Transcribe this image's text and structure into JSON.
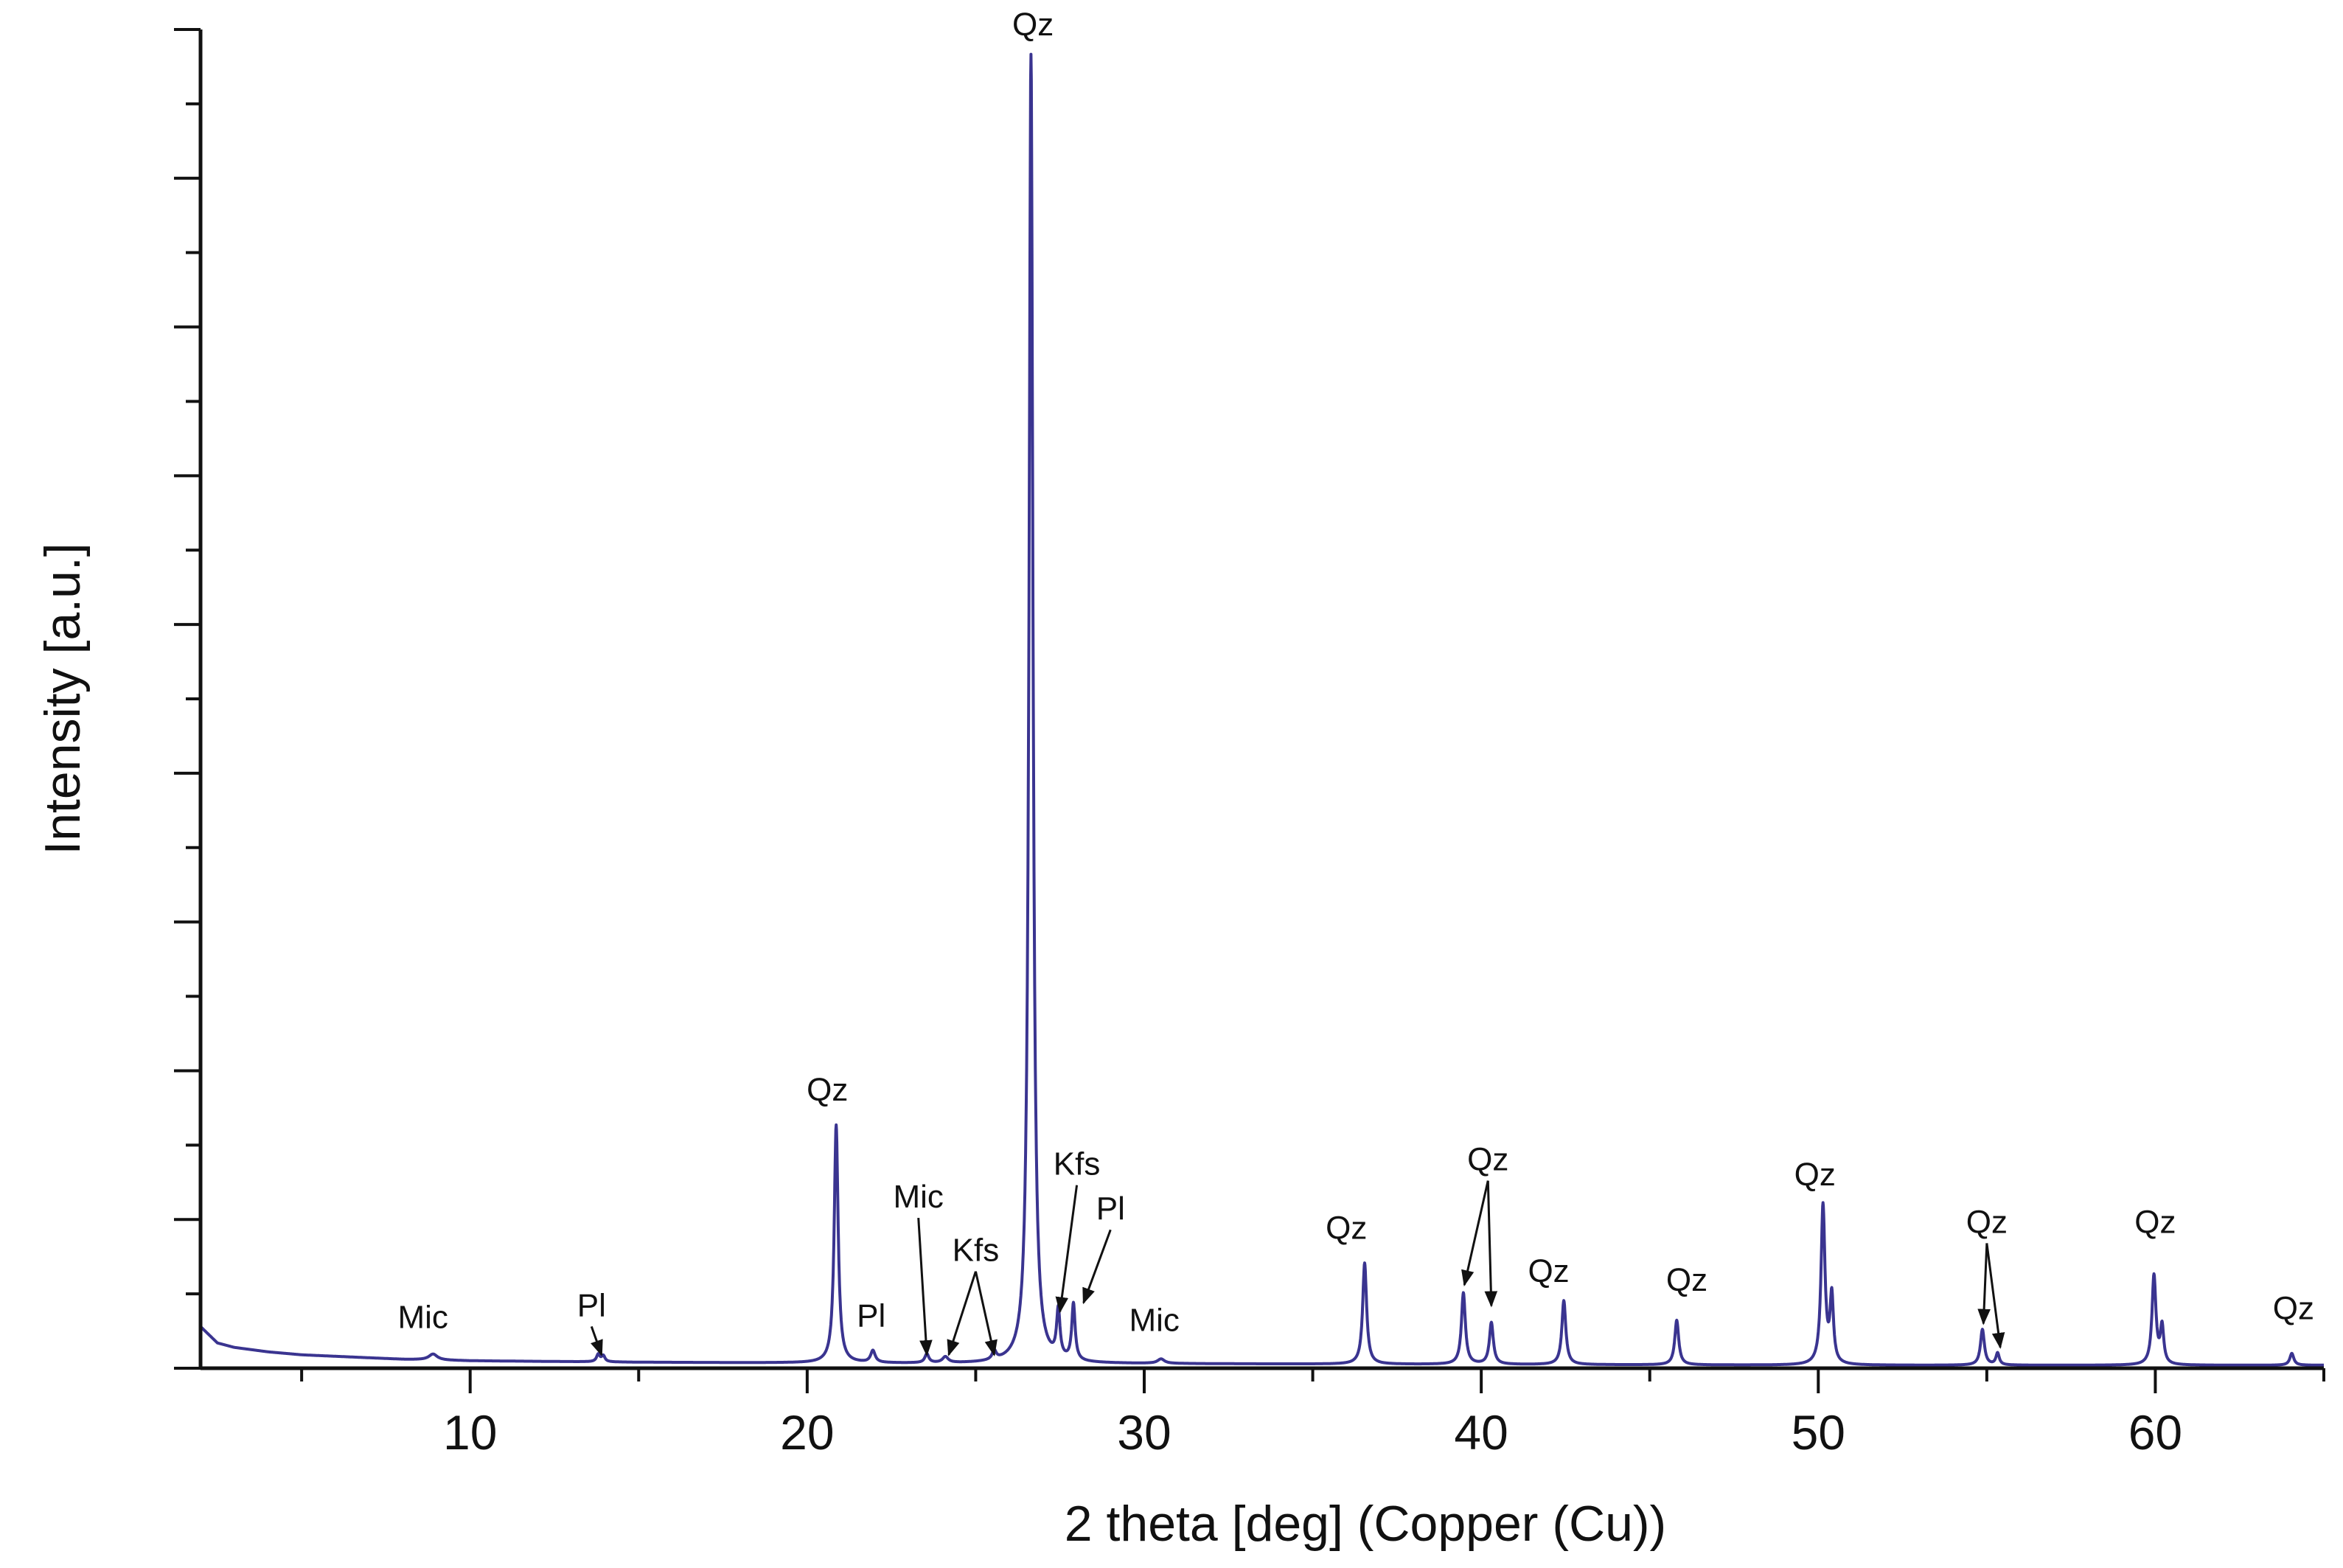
{
  "chart_data": {
    "type": "line",
    "title": "",
    "xlabel": "2 theta [deg] (Copper (Cu))",
    "ylabel": "Intensity [a.u.]",
    "xlim": [
      2,
      65
    ],
    "ylim": [
      0,
      9
    ],
    "x_ticks": [
      10,
      20,
      30,
      40,
      50,
      60
    ],
    "x_tick_labels": [
      "10",
      "20",
      "30",
      "40",
      "50",
      "60"
    ],
    "y_tick_labels_shown": false,
    "grid": false,
    "legend": "none",
    "line_color": "#3a3490",
    "background": {
      "points": [
        [
          2,
          0.28
        ],
        [
          2.5,
          0.17
        ],
        [
          3,
          0.14
        ],
        [
          4,
          0.11
        ],
        [
          5,
          0.09
        ],
        [
          6,
          0.08
        ],
        [
          8,
          0.06
        ],
        [
          10,
          0.05
        ],
        [
          15,
          0.04
        ],
        [
          20,
          0.035
        ],
        [
          25,
          0.03
        ],
        [
          30,
          0.03
        ],
        [
          40,
          0.025
        ],
        [
          50,
          0.02
        ],
        [
          60,
          0.02
        ],
        [
          65,
          0.02
        ]
      ]
    },
    "peaks": [
      {
        "x": 8.9,
        "height": 0.04,
        "width": 0.15
      },
      {
        "x": 13.8,
        "height": 0.05,
        "width": 0.06
      },
      {
        "x": 13.95,
        "height": 0.04,
        "width": 0.06
      },
      {
        "x": 20.86,
        "height": 1.6,
        "width": 0.07
      },
      {
        "x": 21.95,
        "height": 0.08,
        "width": 0.08
      },
      {
        "x": 23.55,
        "height": 0.06,
        "width": 0.07
      },
      {
        "x": 24.1,
        "height": 0.04,
        "width": 0.1
      },
      {
        "x": 25.55,
        "height": 0.06,
        "width": 0.07
      },
      {
        "x": 26.64,
        "height": 8.8,
        "width": 0.07
      },
      {
        "x": 27.45,
        "height": 0.32,
        "width": 0.06
      },
      {
        "x": 27.9,
        "height": 0.38,
        "width": 0.06
      },
      {
        "x": 30.5,
        "height": 0.03,
        "width": 0.12
      },
      {
        "x": 36.54,
        "height": 0.68,
        "width": 0.07
      },
      {
        "x": 39.47,
        "height": 0.48,
        "width": 0.07
      },
      {
        "x": 40.3,
        "height": 0.28,
        "width": 0.07
      },
      {
        "x": 42.45,
        "height": 0.43,
        "width": 0.07
      },
      {
        "x": 45.8,
        "height": 0.3,
        "width": 0.07
      },
      {
        "x": 50.14,
        "height": 1.07,
        "width": 0.07
      },
      {
        "x": 50.4,
        "height": 0.45,
        "width": 0.06
      },
      {
        "x": 54.87,
        "height": 0.24,
        "width": 0.07
      },
      {
        "x": 55.32,
        "height": 0.08,
        "width": 0.06
      },
      {
        "x": 59.96,
        "height": 0.6,
        "width": 0.07
      },
      {
        "x": 60.2,
        "height": 0.25,
        "width": 0.06
      },
      {
        "x": 64.05,
        "height": 0.08,
        "width": 0.07
      }
    ],
    "annotations": [
      {
        "text": "Mic",
        "x": 8.6,
        "y": 0.27,
        "arrows": []
      },
      {
        "text": "Pl",
        "x": 13.6,
        "y": 0.35,
        "arrows": [
          [
            13.9,
            0.09
          ]
        ]
      },
      {
        "text": "Qz",
        "x": 20.6,
        "y": 1.8,
        "arrows": []
      },
      {
        "text": "Pl",
        "x": 21.9,
        "y": 0.28,
        "arrows": []
      },
      {
        "text": "Mic",
        "x": 23.3,
        "y": 1.08,
        "arrows": [
          [
            23.55,
            0.09
          ]
        ]
      },
      {
        "text": "Kfs",
        "x": 25.0,
        "y": 0.72,
        "arrows": [
          [
            24.2,
            0.09
          ],
          [
            25.55,
            0.09
          ]
        ]
      },
      {
        "text": "Qz",
        "x": 26.7,
        "y": 8.96,
        "arrows": []
      },
      {
        "text": "Kfs",
        "x": 28.0,
        "y": 1.3,
        "arrows": [
          [
            27.5,
            0.38
          ]
        ]
      },
      {
        "text": "Pl",
        "x": 29.0,
        "y": 1.0,
        "arrows": [
          [
            28.2,
            0.44
          ]
        ]
      },
      {
        "text": "Mic",
        "x": 30.3,
        "y": 0.25,
        "arrows": []
      },
      {
        "text": "Qz",
        "x": 36.0,
        "y": 0.87,
        "arrows": []
      },
      {
        "text": "Qz",
        "x": 40.2,
        "y": 1.33,
        "arrows": [
          [
            39.5,
            0.56
          ],
          [
            40.3,
            0.42
          ]
        ]
      },
      {
        "text": "Qz",
        "x": 42.0,
        "y": 0.58,
        "arrows": []
      },
      {
        "text": "Qz",
        "x": 46.1,
        "y": 0.52,
        "arrows": []
      },
      {
        "text": "Qz",
        "x": 49.9,
        "y": 1.23,
        "arrows": []
      },
      {
        "text": "Qz",
        "x": 55.0,
        "y": 0.91,
        "arrows": [
          [
            54.9,
            0.3
          ],
          [
            55.4,
            0.14
          ]
        ]
      },
      {
        "text": "Qz",
        "x": 60.0,
        "y": 0.91,
        "arrows": []
      },
      {
        "text": "Qz",
        "x": 64.1,
        "y": 0.33,
        "arrows": []
      }
    ]
  }
}
